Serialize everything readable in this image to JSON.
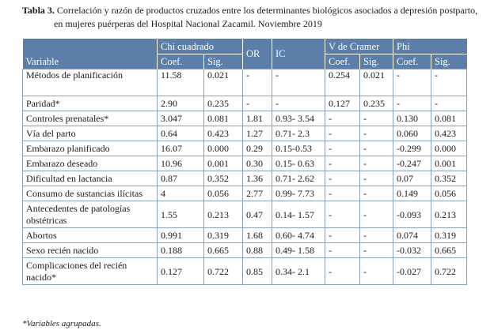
{
  "caption": {
    "label": "Tabla 3.",
    "line1": "Correlación y razón de productos cruzados entre los determinantes biológicos asociados a depresión postparto,",
    "line2": "en mujeres puérperas del Hospital Nacional Zacamil. Noviembre 2019"
  },
  "header": {
    "variable": "Variable",
    "chi_cuadrado": "Chi cuadrado",
    "or": "OR",
    "ic": "IC",
    "v_cramer": "V de Cramer",
    "phi": "Phi",
    "coef": "Coef.",
    "sig": "Sig."
  },
  "rows": [
    {
      "variable": "Métodos de planificación",
      "chi_coef": "11.58",
      "chi_sig": "0.021",
      "or": "-",
      "ic": "-",
      "v_coef": "0.254",
      "v_sig": "0.021",
      "phi_coef": "-",
      "phi_sig": "-"
    },
    {
      "variable": "Paridad*",
      "chi_coef": "2.90",
      "chi_sig": "0.235",
      "or": "-",
      "ic": "-",
      "v_coef": "0.127",
      "v_sig": "0.235",
      "phi_coef": "-",
      "phi_sig": "-"
    },
    {
      "variable": "Controles prenatales*",
      "chi_coef": "3.047",
      "chi_sig": "0.081",
      "or": "1.81",
      "ic": "0.93- 3.54",
      "v_coef": "-",
      "v_sig": "-",
      "phi_coef": "0.130",
      "phi_sig": "0.081"
    },
    {
      "variable": "Vía del parto",
      "chi_coef": "0.64",
      "chi_sig": "0.423",
      "or": "1.27",
      "ic": "0.71- 2.3",
      "v_coef": "-",
      "v_sig": "-",
      "phi_coef": "0.060",
      "phi_sig": "0.423"
    },
    {
      "variable": "Embarazo planificado",
      "chi_coef": "16.07",
      "chi_sig": "0.000",
      "or": "0.29",
      "ic": "0.15-0.53",
      "v_coef": "-",
      "v_sig": "-",
      "phi_coef": "-0.299",
      "phi_sig": "0.000"
    },
    {
      "variable": "Embarazo deseado",
      "chi_coef": "10.96",
      "chi_sig": "0.001",
      "or": "0.30",
      "ic": "0.15- 0.63",
      "v_coef": "-",
      "v_sig": "-",
      "phi_coef": "-0.247",
      "phi_sig": "0.001"
    },
    {
      "variable": "Dificultad en lactancia",
      "chi_coef": "0.87",
      "chi_sig": "0.352",
      "or": "1.36",
      "ic": "0.71- 2.62",
      "v_coef": "-",
      "v_sig": "-",
      "phi_coef": "0.07",
      "phi_sig": "0.352"
    },
    {
      "variable": "Consumo de sustancias ilícitas",
      "chi_coef": "4",
      "chi_sig": "0.056",
      "or": "2.77",
      "ic": "0.99- 7.73",
      "v_coef": "-",
      "v_sig": "-",
      "phi_coef": "0.149",
      "phi_sig": "0.056"
    },
    {
      "variable": "Antecedentes de patologías obstétricas",
      "chi_coef": "1.55",
      "chi_sig": "0.213",
      "or": "0.47",
      "ic": "0.14- 1.57",
      "v_coef": "-",
      "v_sig": "-",
      "phi_coef": "-0.093",
      "phi_sig": "0.213"
    },
    {
      "variable": "Abortos",
      "chi_coef": "0.991",
      "chi_sig": "0.319",
      "or": "1.68",
      "ic": "0.60- 4.74",
      "v_coef": "-",
      "v_sig": "-",
      "phi_coef": "0.074",
      "phi_sig": "0.319"
    },
    {
      "variable": "Sexo recién nacido",
      "chi_coef": "0.188",
      "chi_sig": "0.665",
      "or": "0.88",
      "ic": "0.49- 1.58",
      "v_coef": "-",
      "v_sig": "-",
      "phi_coef": "-0.032",
      "phi_sig": "0.665"
    },
    {
      "variable": "Complicaciones del recién nacido*",
      "chi_coef": "0.127",
      "chi_sig": "0.722",
      "or": "0.85",
      "ic": "0.34- 2.1",
      "v_coef": "-",
      "v_sig": "-",
      "phi_coef": "-0.027",
      "phi_sig": "0.722"
    }
  ],
  "footnote": "*Variables agrupadas.",
  "colors": {
    "header_bg": "#5b7fa9",
    "border": "#8aa0bd"
  }
}
